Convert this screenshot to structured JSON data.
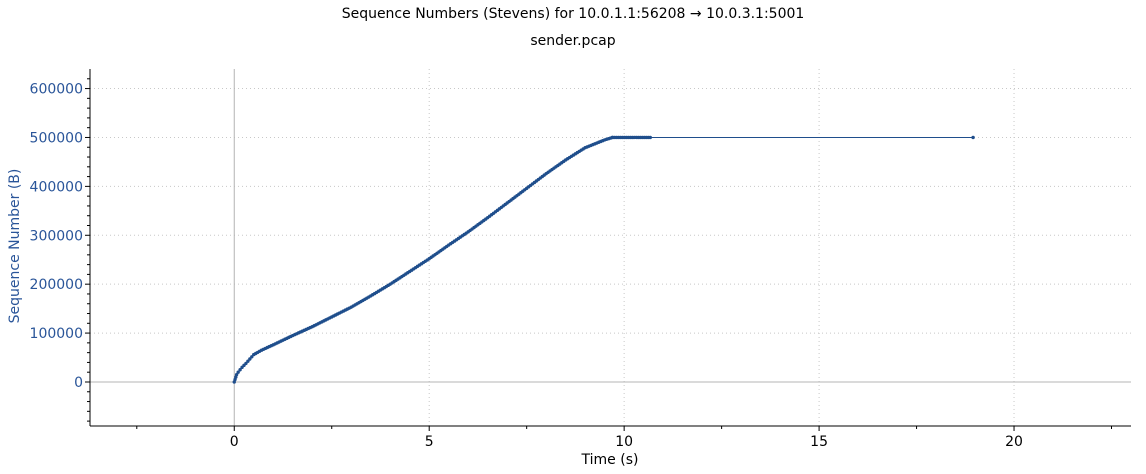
{
  "chart_data": {
    "type": "line",
    "title": "Sequence Numbers (Stevens) for 10.0.1.1:56208 → 10.0.3.1:5001",
    "subtitle": "sender.pcap",
    "xlabel": "Time (s)",
    "ylabel": "Sequence Number (B)",
    "xlim": [
      -3.7,
      23.0
    ],
    "ylim": [
      -90000,
      640000
    ],
    "xticks": [
      0,
      5,
      10,
      15,
      20
    ],
    "xtick_labels": [
      "0",
      "5",
      "10",
      "15",
      "20"
    ],
    "yticks": [
      0,
      100000,
      200000,
      300000,
      400000,
      500000,
      600000
    ],
    "ytick_labels": [
      "0",
      "100000",
      "200000",
      "300000",
      "400000",
      "500000",
      "600000"
    ],
    "grid": true,
    "legend": "none",
    "series": [
      {
        "x": [
          0.0,
          0.02,
          0.04,
          0.06,
          0.1,
          0.15,
          0.2,
          0.3,
          0.4,
          0.5,
          0.7,
          1.0,
          1.5,
          2.0,
          2.5,
          3.0,
          3.5,
          4.0,
          4.5,
          5.0,
          5.5,
          6.0,
          6.5,
          7.0,
          7.5,
          8.0,
          8.5,
          9.0,
          9.5,
          9.7,
          10.67,
          18.95
        ],
        "y": [
          0,
          5000,
          10000,
          15000,
          20000,
          25000,
          30000,
          38000,
          47000,
          56000,
          65000,
          76000,
          95000,
          113000,
          133000,
          153000,
          176000,
          200000,
          226000,
          252000,
          280000,
          307000,
          336000,
          366000,
          396000,
          426000,
          454000,
          479000,
          495000,
          500000,
          500000,
          500000
        ]
      }
    ],
    "colors": {
      "series": "#1f4e8c",
      "axis_text": "#2a5599",
      "grid": "#c8c8c8",
      "zero_line": "#b4b4b4",
      "axis": "#000000"
    }
  }
}
